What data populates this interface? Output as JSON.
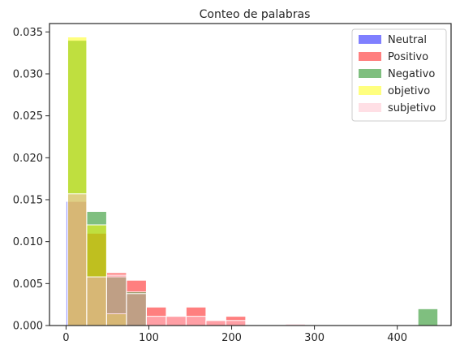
{
  "chart_data": {
    "type": "histogram",
    "title": "Conteo de palabras",
    "xlabel": "",
    "ylabel": "",
    "xlim": [
      -20,
      465
    ],
    "ylim": [
      0,
      0.036
    ],
    "x_ticks": [
      0,
      100,
      200,
      300,
      400
    ],
    "y_ticks": [
      0.0,
      0.005,
      0.01,
      0.015,
      0.02,
      0.025,
      0.03,
      0.035
    ],
    "y_tick_labels": [
      "0.000",
      "0.005",
      "0.010",
      "0.015",
      "0.020",
      "0.025",
      "0.030",
      "0.035"
    ],
    "grid": false,
    "legend_position": "top-right",
    "series": [
      {
        "name": "Neutral",
        "color": "#0000ff",
        "bins": [
          [
            0,
            25,
            0.0148
          ],
          [
            25,
            49,
            0.0058
          ],
          [
            49,
            73,
            0.0014
          ]
        ]
      },
      {
        "name": "Positivo",
        "color": "#ff0000",
        "bins": [
          [
            2,
            25,
            0.0148
          ],
          [
            25,
            49,
            0.011
          ],
          [
            49,
            73,
            0.0063
          ],
          [
            73,
            97,
            0.0054
          ],
          [
            97,
            121,
            0.0022
          ],
          [
            121,
            145,
            0.0011
          ],
          [
            145,
            169,
            0.0022
          ],
          [
            169,
            193,
            0.0006
          ],
          [
            193,
            217,
            0.0011
          ]
        ]
      },
      {
        "name": "Negativo",
        "color": "#008000",
        "bins": [
          [
            2,
            25,
            0.034
          ],
          [
            25,
            49,
            0.0136
          ],
          [
            49,
            73,
            0.0058
          ],
          [
            73,
            97,
            0.004
          ],
          [
            425,
            449,
            0.002
          ]
        ]
      },
      {
        "name": "objetivo",
        "color": "#ffff00",
        "bins": [
          [
            2,
            25,
            0.0344
          ],
          [
            25,
            49,
            0.012
          ],
          [
            49,
            73,
            0.0014
          ]
        ]
      },
      {
        "name": "subjetivo",
        "color": "#ffc0cb",
        "bins": [
          [
            2,
            25,
            0.0157
          ],
          [
            25,
            49,
            0.0058
          ],
          [
            49,
            73,
            0.006
          ],
          [
            73,
            97,
            0.0038
          ],
          [
            97,
            121,
            0.0011
          ],
          [
            121,
            145,
            0.0011
          ],
          [
            145,
            169,
            0.0011
          ],
          [
            169,
            193,
            0.0006
          ],
          [
            193,
            217,
            0.0006
          ],
          [
            265,
            289,
            0.0002
          ]
        ]
      }
    ]
  }
}
